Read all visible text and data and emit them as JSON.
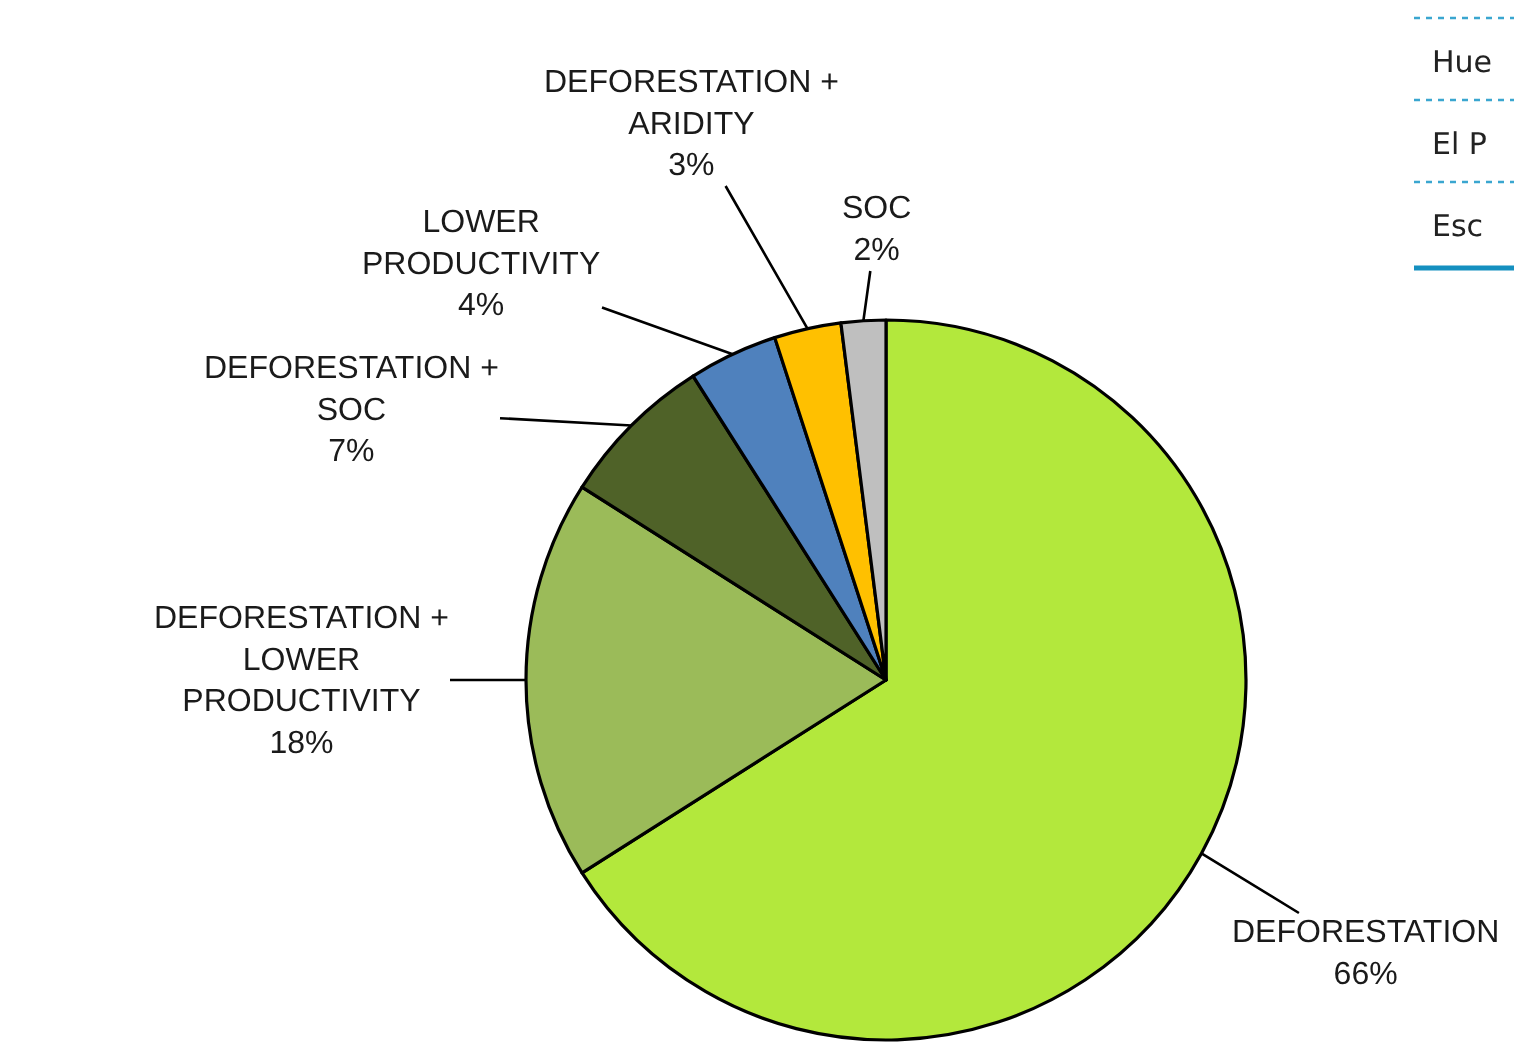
{
  "chart_data": {
    "type": "pie",
    "categories": [
      "DEFORESTATION",
      "DEFORESTATION + LOWER PRODUCTIVITY",
      "DEFORESTATION + SOC",
      "LOWER PRODUCTIVITY",
      "DEFORESTATION + ARIDITY",
      "SOC"
    ],
    "values": [
      66,
      18,
      7,
      4,
      3,
      2
    ],
    "colors": [
      "#b3e83c",
      "#9bbb59",
      "#4f6228",
      "#4f81bd",
      "#ffc000",
      "#bfbfbf"
    ],
    "value_labels": [
      "66%",
      "18%",
      "7%",
      "4%",
      "3%",
      "2%"
    ],
    "annotations": [
      "Hue",
      "El P",
      "Esc"
    ]
  }
}
